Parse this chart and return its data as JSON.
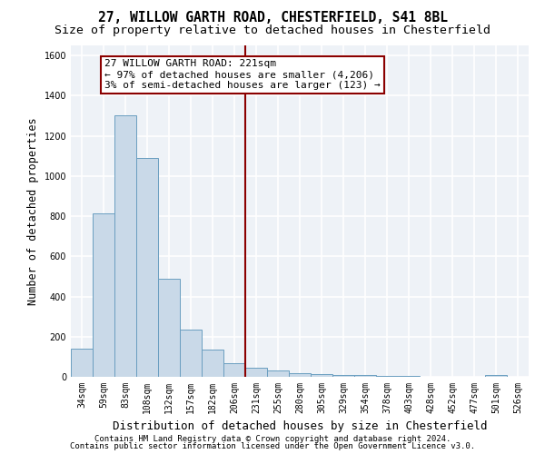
{
  "title_line1": "27, WILLOW GARTH ROAD, CHESTERFIELD, S41 8BL",
  "title_line2": "Size of property relative to detached houses in Chesterfield",
  "xlabel": "Distribution of detached houses by size in Chesterfield",
  "ylabel": "Number of detached properties",
  "bar_color": "#c9d9e8",
  "bar_edge_color": "#6a9ec0",
  "categories": [
    "34sqm",
    "59sqm",
    "83sqm",
    "108sqm",
    "132sqm",
    "157sqm",
    "182sqm",
    "206sqm",
    "231sqm",
    "255sqm",
    "280sqm",
    "305sqm",
    "329sqm",
    "354sqm",
    "378sqm",
    "403sqm",
    "428sqm",
    "452sqm",
    "477sqm",
    "501sqm",
    "526sqm"
  ],
  "values": [
    140,
    815,
    1300,
    1090,
    490,
    235,
    135,
    70,
    45,
    30,
    20,
    13,
    8,
    8,
    4,
    4,
    2,
    2,
    2,
    10,
    2
  ],
  "ylim": [
    0,
    1650
  ],
  "yticks": [
    0,
    200,
    400,
    600,
    800,
    1000,
    1200,
    1400,
    1600
  ],
  "vline_x": 7.5,
  "vline_color": "#8b0000",
  "annotation_text": "27 WILLOW GARTH ROAD: 221sqm\n← 97% of detached houses are smaller (4,206)\n3% of semi-detached houses are larger (123) →",
  "annotation_box_color": "#8b0000",
  "footer_line1": "Contains HM Land Registry data © Crown copyright and database right 2024.",
  "footer_line2": "Contains public sector information licensed under the Open Government Licence v3.0.",
  "bg_color": "#eef2f7",
  "grid_color": "#ffffff",
  "title_fontsize": 10.5,
  "subtitle_fontsize": 9.5,
  "tick_fontsize": 7,
  "ylabel_fontsize": 8.5,
  "xlabel_fontsize": 9,
  "annotation_fontsize": 8,
  "footer_fontsize": 6.5
}
